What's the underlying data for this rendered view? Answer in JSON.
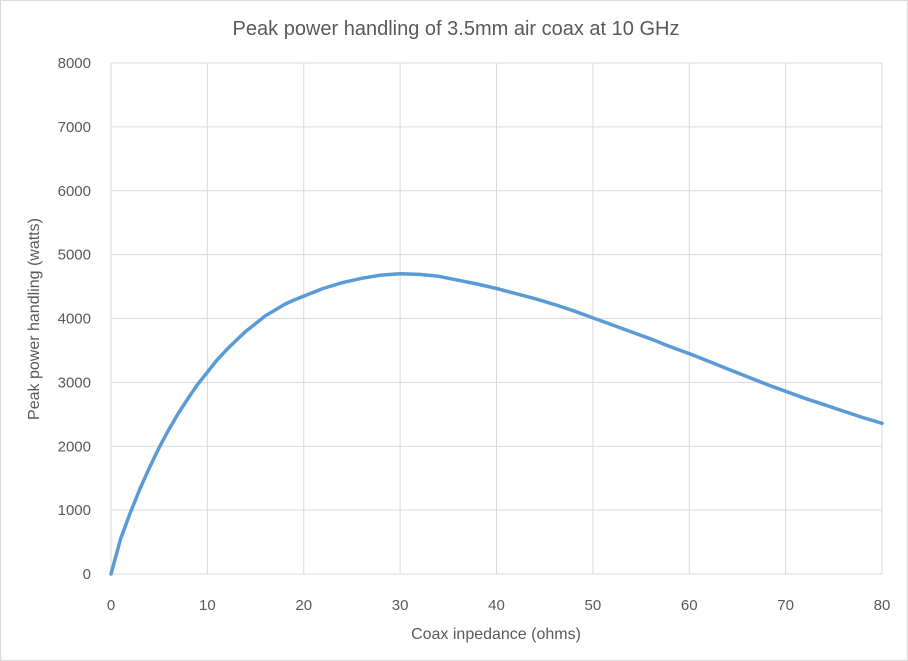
{
  "chart_data": {
    "type": "line",
    "title": "Peak power handling of 3.5mm air coax at 10 GHz",
    "xlabel": "Coax inpedance (ohms)",
    "ylabel": "Peak power handling (watts)",
    "xlim": [
      0,
      80
    ],
    "ylim": [
      0,
      8000
    ],
    "xticks": [
      0,
      10,
      20,
      30,
      40,
      50,
      60,
      70,
      80
    ],
    "yticks": [
      0,
      1000,
      2000,
      3000,
      4000,
      5000,
      6000,
      7000,
      8000
    ],
    "xtick_labels": [
      "0",
      "10",
      "20",
      "30",
      "40",
      "50",
      "60",
      "70",
      "80"
    ],
    "ytick_labels": [
      "0",
      "1000",
      "2000",
      "3000",
      "4000",
      "5000",
      "6000",
      "7000",
      "8000"
    ],
    "grid": true,
    "legend": "none",
    "series": [
      {
        "color": "#5b9bd5",
        "x": [
          0,
          1,
          2,
          3,
          4,
          5,
          6,
          7,
          8,
          9,
          10,
          11,
          12,
          13,
          14,
          15,
          16,
          17,
          18,
          19,
          20,
          22,
          24,
          26,
          28,
          30,
          32,
          34,
          36,
          38,
          40,
          42,
          44,
          46,
          48,
          50,
          52,
          54,
          56,
          58,
          60,
          62,
          64,
          66,
          68,
          70,
          72,
          74,
          76,
          78,
          80
        ],
        "y": [
          0,
          550,
          960,
          1330,
          1670,
          1980,
          2260,
          2520,
          2750,
          2970,
          3160,
          3350,
          3510,
          3660,
          3800,
          3920,
          4040,
          4130,
          4220,
          4290,
          4350,
          4470,
          4560,
          4630,
          4680,
          4700,
          4690,
          4660,
          4600,
          4540,
          4470,
          4390,
          4310,
          4220,
          4120,
          4010,
          3900,
          3790,
          3680,
          3560,
          3450,
          3330,
          3210,
          3090,
          2970,
          2860,
          2750,
          2650,
          2550,
          2450,
          2360
        ]
      }
    ]
  }
}
